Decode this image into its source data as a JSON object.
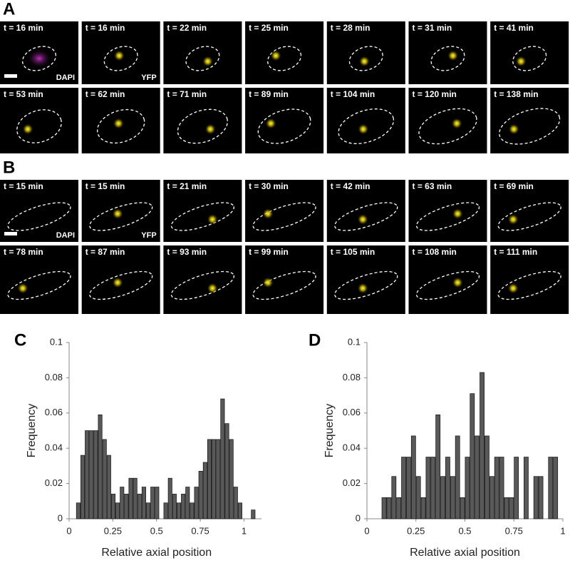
{
  "panels": {
    "A": {
      "label": "A",
      "rows": [
        [
          "t = 16 min",
          "t = 16 min",
          "t = 22 min",
          "t = 25 min",
          "t = 28 min",
          "t = 31 min",
          "t = 41 min"
        ],
        [
          "t = 53 min",
          "t = 62 min",
          "t = 71 min",
          "t = 89 min",
          "t = 104 min",
          "t = 120 min",
          "t = 138 min"
        ]
      ],
      "channels": [
        "DAPI",
        "YFP"
      ]
    },
    "B": {
      "label": "B",
      "rows": [
        [
          "t = 15 min",
          "t = 15 min",
          "t = 21 min",
          "t = 30 min",
          "t = 42 min",
          "t = 63 min",
          "t = 69 min"
        ],
        [
          "t = 78 min",
          "t = 87 min",
          "t = 93 min",
          "t = 99 min",
          "t = 105 min",
          "t = 108 min",
          "t = 111 min"
        ]
      ],
      "channels": [
        "DAPI",
        "YFP"
      ]
    }
  },
  "chart_data": [
    {
      "type": "histogram",
      "label": "C",
      "xlabel": "Relative axial position",
      "ylabel": "Frequency",
      "color": "#595959",
      "bins": [
        0.04,
        0.065,
        0.09,
        0.115,
        0.14,
        0.165,
        0.19,
        0.215,
        0.24,
        0.265,
        0.29,
        0.315,
        0.34,
        0.365,
        0.39,
        0.415,
        0.44,
        0.465,
        0.49,
        0.515,
        0.54,
        0.565,
        0.59,
        0.615,
        0.64,
        0.665,
        0.69,
        0.715,
        0.74,
        0.765,
        0.79,
        0.815,
        0.84,
        0.865,
        0.89,
        0.915,
        0.94,
        0.965,
        0.99,
        1.015,
        1.04,
        1.065
      ],
      "values": [
        0.009,
        0.036,
        0.05,
        0.05,
        0.05,
        0.059,
        0.045,
        0.036,
        0.014,
        0.009,
        0.018,
        0.014,
        0.023,
        0.023,
        0.014,
        0.018,
        0.009,
        0.018,
        0.018,
        0,
        0.009,
        0.023,
        0.014,
        0.009,
        0.014,
        0.018,
        0.009,
        0.018,
        0.027,
        0.032,
        0.045,
        0.045,
        0.045,
        0.068,
        0.054,
        0.045,
        0.018,
        0.009,
        0,
        0,
        0.005
      ],
      "xlim": [
        0,
        1.1
      ],
      "xticks": [
        0,
        0.25,
        0.5,
        0.75,
        1
      ],
      "ylim": [
        0,
        0.1
      ],
      "yticks": [
        0,
        0.02,
        0.04,
        0.06,
        0.08,
        0.1
      ]
    },
    {
      "type": "histogram",
      "label": "D",
      "xlabel": "Relative axial position",
      "ylabel": "Frequency",
      "color": "#595959",
      "bins": [
        0.075,
        0.1,
        0.125,
        0.15,
        0.175,
        0.2,
        0.225,
        0.25,
        0.275,
        0.3,
        0.325,
        0.35,
        0.375,
        0.4,
        0.425,
        0.45,
        0.475,
        0.5,
        0.525,
        0.55,
        0.575,
        0.6,
        0.625,
        0.65,
        0.675,
        0.7,
        0.725,
        0.75,
        0.775,
        0.8,
        0.825,
        0.85,
        0.875,
        0.9,
        0.925,
        0.95,
        0.975
      ],
      "values": [
        0.012,
        0.012,
        0.024,
        0.012,
        0.035,
        0.035,
        0.047,
        0.024,
        0.012,
        0.035,
        0.035,
        0.059,
        0.024,
        0.035,
        0.024,
        0.047,
        0.012,
        0.035,
        0.071,
        0.047,
        0.083,
        0.047,
        0.024,
        0.035,
        0.035,
        0.012,
        0.012,
        0.035,
        0,
        0.035,
        0,
        0.024,
        0.024,
        0,
        0.035,
        0.035
      ],
      "xlim": [
        0,
        1
      ],
      "xticks": [
        0,
        0.25,
        0.5,
        0.75,
        1
      ],
      "ylim": [
        0,
        0.1
      ],
      "yticks": [
        0,
        0.02,
        0.04,
        0.06,
        0.08,
        0.1
      ]
    }
  ]
}
